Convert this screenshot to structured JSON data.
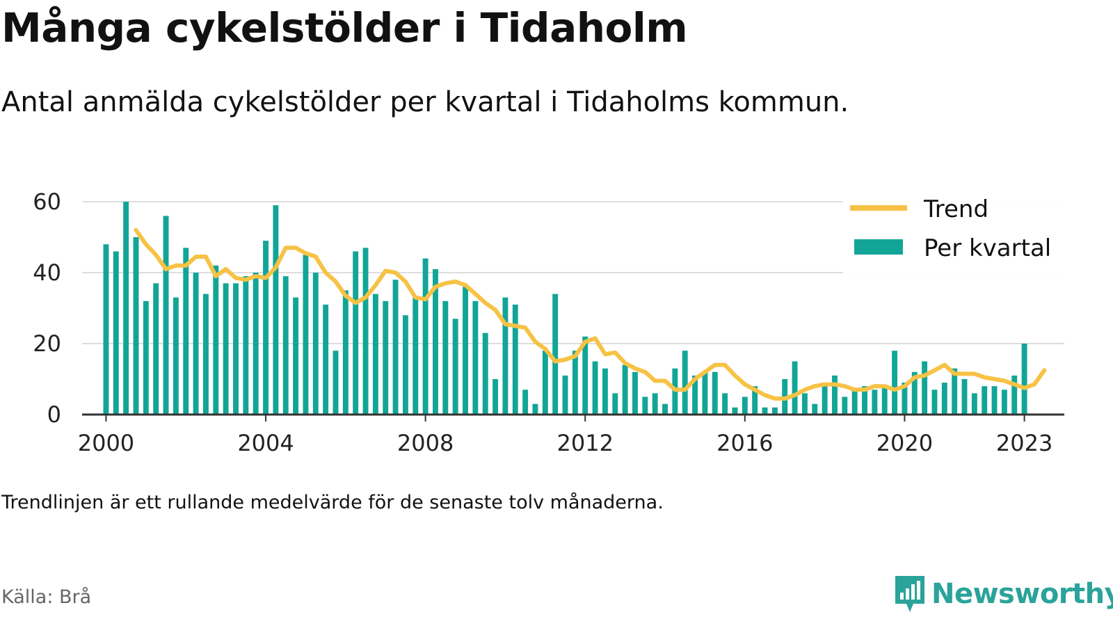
{
  "header": {
    "title": "Många cykelstölder i Tidaholm",
    "subtitle": "Antal anmälda cykelstölder per kvartal i Tidaholms kommun."
  },
  "footer": {
    "note": "Trendlinjen är ett rullande medelvärde för de senaste tolv månaderna.",
    "source": "Källa: Brå",
    "brand": "Newsworthy"
  },
  "icons": {
    "brand_logo": "bar-chart-logo-icon"
  },
  "colors": {
    "bars": "#12a597",
    "trend": "#f7c245",
    "grid": "#dddddd",
    "axis": "#333333",
    "brand": "#2aa39a"
  },
  "chart_data": {
    "type": "bar",
    "title": "Många cykelstölder i Tidaholm",
    "subtitle": "Antal anmälda cykelstölder per kvartal i Tidaholms kommun.",
    "xlabel": "",
    "ylabel": "",
    "ylim": [
      0,
      60
    ],
    "yticks": [
      0,
      20,
      40,
      60
    ],
    "xlim": [
      1999.4,
      2024.0
    ],
    "xticks": [
      2000,
      2004,
      2008,
      2012,
      2016,
      2020,
      2023
    ],
    "grid": true,
    "legend_position": "top-right",
    "x_start": 2000,
    "period": "quarter",
    "series": [
      {
        "name": "Per kvartal",
        "type": "bar",
        "values": [
          48,
          46,
          60,
          50,
          32,
          37,
          56,
          33,
          47,
          40,
          34,
          42,
          37,
          37,
          39,
          40,
          49,
          59,
          39,
          33,
          45,
          40,
          31,
          18,
          35,
          46,
          47,
          34,
          32,
          38,
          28,
          33,
          44,
          41,
          32,
          27,
          36,
          32,
          23,
          10,
          33,
          31,
          7,
          3,
          18,
          34,
          11,
          18,
          22,
          15,
          13,
          6,
          14,
          12,
          5,
          6,
          3,
          13,
          18,
          11,
          12,
          12,
          6,
          2,
          5,
          8,
          2,
          2,
          10,
          15,
          6,
          3,
          9,
          11,
          5,
          7,
          8,
          7,
          8,
          18,
          9,
          12,
          15,
          7,
          9,
          13,
          10,
          6,
          8,
          8,
          7,
          11,
          20
        ]
      },
      {
        "name": "Trend",
        "type": "line",
        "values": [
          null,
          null,
          null,
          52,
          48,
          45,
          41,
          42,
          42,
          44.5,
          44.5,
          39,
          41,
          38.5,
          38,
          39,
          38.5,
          41.5,
          47,
          47,
          45.5,
          44.5,
          40,
          37.5,
          33.5,
          31.5,
          33,
          36.5,
          40.5,
          40,
          37.5,
          33,
          32.5,
          36,
          37,
          37.5,
          36.5,
          34,
          31.5,
          29.5,
          25.5,
          25,
          24.5,
          20.5,
          18.5,
          15,
          15.5,
          16.5,
          20.5,
          21.5,
          17,
          17.5,
          14.5,
          13,
          12,
          9.5,
          9.5,
          7,
          7,
          10,
          12,
          14,
          14,
          11,
          8.5,
          7,
          5.5,
          4.5,
          4.5,
          5.5,
          7,
          8,
          8.5,
          8.5,
          8,
          7,
          7,
          8,
          8,
          7,
          8,
          10.5,
          11,
          12.5,
          14,
          11.5,
          11.5,
          11.5,
          10.5,
          10,
          9.5,
          8.5,
          7.5,
          8.5,
          12.5
        ]
      }
    ]
  }
}
